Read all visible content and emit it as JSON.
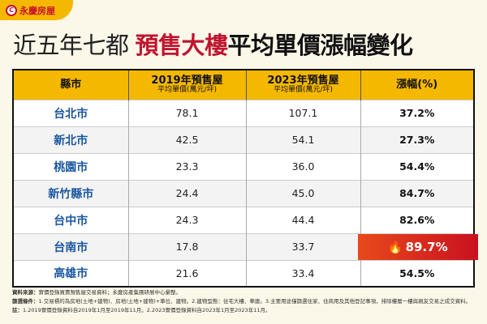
{
  "brand": {
    "name": "永慶房屋",
    "mark": "C"
  },
  "title": {
    "part1": "近五年七都",
    "part2": "預售大樓",
    "part3": "平均單價漲幅變化"
  },
  "table": {
    "headers": [
      {
        "main": "縣市",
        "sub": ""
      },
      {
        "main": "2019年預售屋",
        "sub": "平均單價(萬元/坪)"
      },
      {
        "main": "2023年預售屋",
        "sub": "平均單價(萬元/坪)"
      },
      {
        "main": "漲幅(%)",
        "sub": ""
      }
    ],
    "rows": [
      {
        "city": "台北市",
        "p2019": "78.1",
        "p2023": "107.1",
        "rate": "37.2%"
      },
      {
        "city": "新北市",
        "p2019": "42.5",
        "p2023": "54.1",
        "rate": "27.3%"
      },
      {
        "city": "桃園市",
        "p2019": "23.3",
        "p2023": "36.0",
        "rate": "54.4%"
      },
      {
        "city": "新竹縣市",
        "p2019": "24.4",
        "p2023": "45.0",
        "rate": "84.7%"
      },
      {
        "city": "台中市",
        "p2019": "24.3",
        "p2023": "44.4",
        "rate": "82.6%"
      },
      {
        "city": "台南市",
        "p2019": "17.8",
        "p2023": "33.7",
        "rate": "89.7%",
        "highlight": true,
        "icon": "fire-icon"
      },
      {
        "city": "高雄市",
        "p2019": "21.6",
        "p2023": "33.4",
        "rate": "54.5%"
      }
    ]
  },
  "notes": {
    "source_label": "資料來源：",
    "source": "實價登錄買賣預售屋交易資料；永慶房產集團研展中心彙整。",
    "filter_label": "篩選條件：",
    "filter": "1.交易標的為房地(土地+建物)、房地(土地+建物)+車位、建物。2.建物型態：住宅大樓、華廈。3.主要用途僅篩選住家、住商用及其他登記事項，排除樓層一樓與親友交易之成交資料。",
    "note_label": "註：",
    "note": "1.2019實價登錄資料自2019年1月至2019年11月。2.2023實價登錄資料自2023年1月至2023年11月。"
  },
  "colors": {
    "accent": "#f5b800",
    "title_red": "#c0142f",
    "city_blue": "#1b57a0",
    "highlight": "#d8261d"
  }
}
